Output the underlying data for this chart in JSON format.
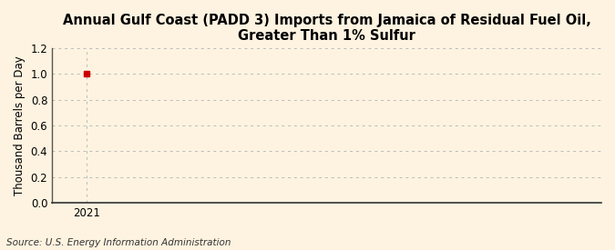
{
  "title": "Annual Gulf Coast (PADD 3) Imports from Jamaica of Residual Fuel Oil, Greater Than 1% Sulfur",
  "ylabel": "Thousand Barrels per Day",
  "source": "Source: U.S. Energy Information Administration",
  "background_color": "#fdf3e0",
  "plot_bg_color": "#fdf3e0",
  "data_x": [
    2021
  ],
  "data_y": [
    1.0
  ],
  "marker_color": "#cc0000",
  "xlim": [
    2020.5,
    2028.5
  ],
  "ylim": [
    0.0,
    1.2
  ],
  "yticks": [
    0.0,
    0.2,
    0.4,
    0.6,
    0.8,
    1.0,
    1.2
  ],
  "xticks": [
    2021
  ],
  "grid_color": "#bbbbbb",
  "title_fontsize": 10.5,
  "label_fontsize": 8.5,
  "tick_fontsize": 8.5,
  "source_fontsize": 7.5,
  "left_spine_color": "#555555",
  "bottom_spine_color": "#333333"
}
